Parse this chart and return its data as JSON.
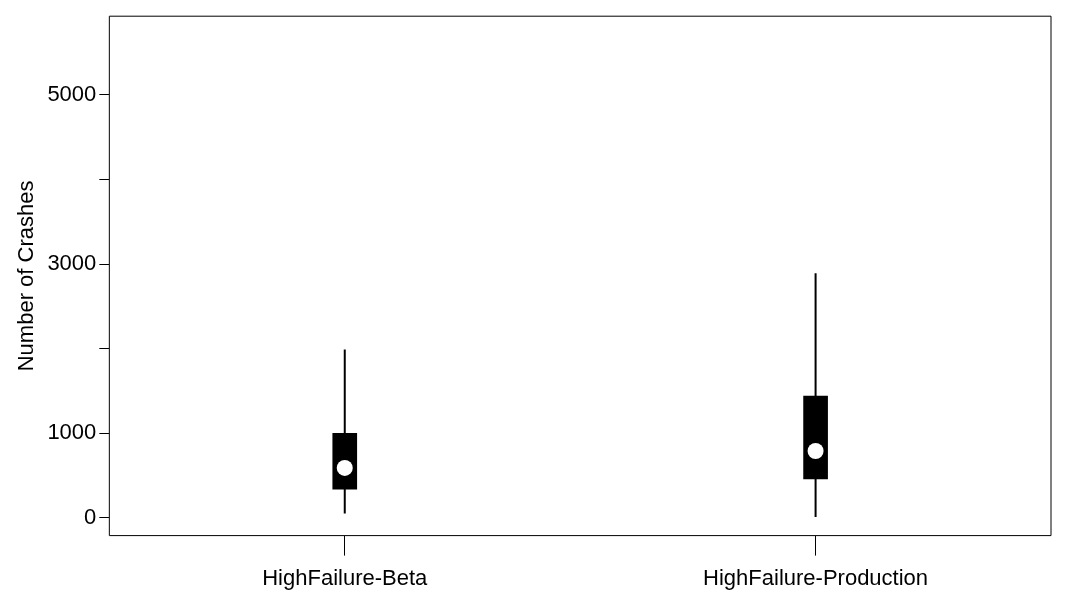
{
  "chart_data": {
    "type": "box",
    "ylabel": "Number of Crashes",
    "categories": [
      "HighFailure-Beta",
      "HighFailure-Production"
    ],
    "boxes": [
      {
        "low": 50,
        "q1": 340,
        "median": 590,
        "q3": 1000,
        "high": 1990
      },
      {
        "low": 10,
        "q1": 460,
        "median": 790,
        "q3": 1440,
        "high": 2890
      }
    ],
    "color": "#000000",
    "ylim": [
      -210,
      5930
    ],
    "yticks": [
      0,
      1000,
      {
        "value": 2000,
        "label": null
      },
      3000,
      {
        "value": 4000,
        "label": null
      },
      5000
    ],
    "grid": false,
    "legend": false
  }
}
